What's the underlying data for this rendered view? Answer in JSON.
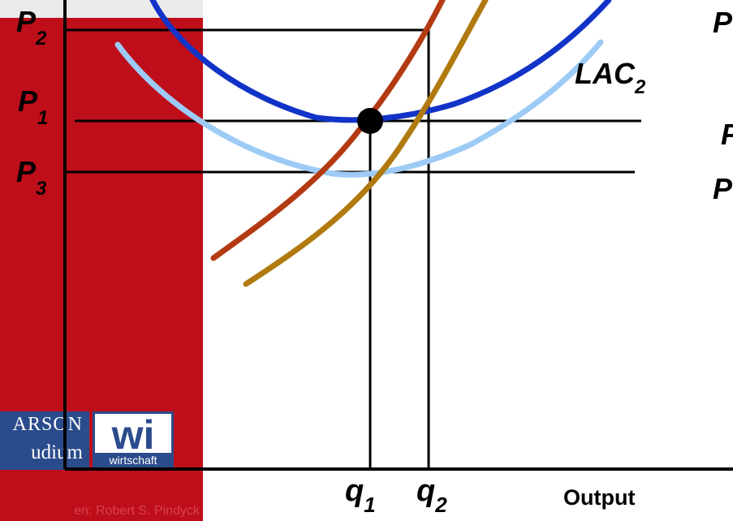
{
  "logo": {
    "pearson": "ARSON",
    "studium": "udium",
    "wi": "wi",
    "wirtschaft": "wirtschaft"
  },
  "credit": "en: Robert S. Pindyck",
  "labels": {
    "p2": "P",
    "p2_sub": "2",
    "p1": "P",
    "p1_sub": "1",
    "p3": "P",
    "p3_sub": "3",
    "lac": "LAC",
    "lac_sub": "2",
    "q1": "q",
    "q1_sub": "1",
    "q2": "q",
    "q2_sub": "2",
    "output": "Output",
    "right_p_top": "P",
    "right_p_mid": "P",
    "right_p_low": "P"
  },
  "colors": {
    "red_panel": "#be0e1a",
    "dark_blue_curve": "#1233c8",
    "light_blue_curve": "#9dcbf5",
    "dark_orange_curve": "#b33a12",
    "gold_curve": "#b07a10",
    "axes": "#000000"
  }
}
